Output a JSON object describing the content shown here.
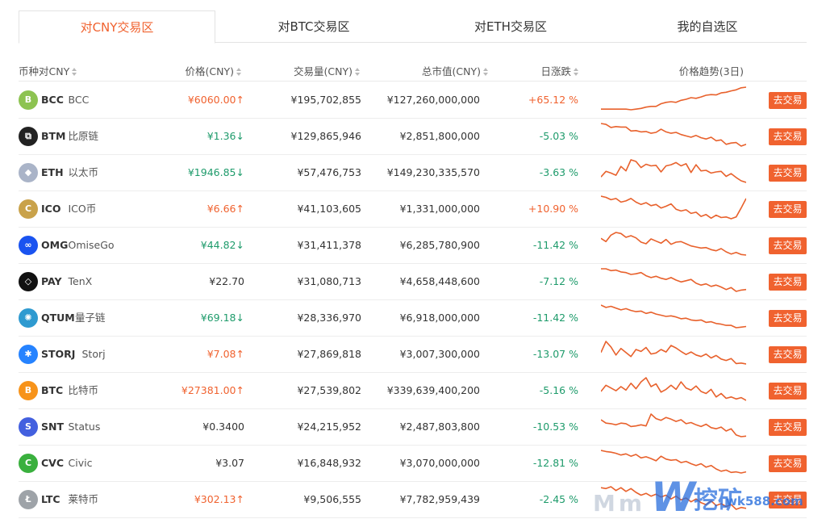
{
  "tabs": [
    "对CNY交易区",
    "对BTC交易区",
    "对ETH交易区",
    "我的自选区"
  ],
  "headers": {
    "coin": "币种对CNY",
    "price": "价格(CNY)",
    "volume": "交易量(CNY)",
    "market_cap": "总市值(CNY)",
    "change": "日涨跌",
    "trend": "价格趋势(3日)"
  },
  "trade_label": "去交易",
  "rows": [
    {
      "symbol": "BCC",
      "name": "BCC",
      "price": "¥6060.00",
      "arrow": "↑",
      "dir": "up",
      "volume": "¥195,702,855",
      "market_cap": "¥127,260,000,000",
      "change": "+65.12 %",
      "change_dir": "up",
      "icon_name": "bitcoin-cash-icon",
      "icon_color": "#8dc351",
      "icon_glyph": "B",
      "spark": [
        3,
        3,
        3,
        3,
        3,
        3,
        2.8,
        3,
        3.2,
        3.6,
        3.8,
        3.8,
        4.6,
        5,
        5.2,
        5,
        5.6,
        5.9,
        6.4,
        6.2,
        6.6,
        7.1,
        7.3,
        7.2,
        7.8,
        8,
        8.4,
        8.7,
        9.3,
        9.5
      ]
    },
    {
      "symbol": "BTM",
      "name": "比原链",
      "price": "¥1.36",
      "arrow": "↓",
      "dir": "down",
      "volume": "¥129,865,946",
      "market_cap": "¥2,851,800,000",
      "change": "-5.03 %",
      "change_dir": "down",
      "icon_name": "bytom-icon",
      "icon_color": "#222222",
      "icon_glyph": "⧉",
      "spark": [
        9.3,
        9.1,
        8.4,
        8.6,
        8.5,
        8.5,
        7.6,
        7.7,
        7.4,
        7.5,
        7.1,
        7.3,
        8,
        7.4,
        7.1,
        7.3,
        6.8,
        6.5,
        6.2,
        6.6,
        6.1,
        5.8,
        6.2,
        5.4,
        5.6,
        4.6,
        4.9,
        5,
        4.2,
        4.6
      ]
    },
    {
      "symbol": "ETH",
      "name": "以太币",
      "price": "¥1946.85",
      "arrow": "↓",
      "dir": "down",
      "volume": "¥57,476,753",
      "market_cap": "¥149,230,335,570",
      "change": "-3.63 %",
      "change_dir": "down",
      "icon_name": "ethereum-icon",
      "icon_color": "#aab4c8",
      "icon_glyph": "◆",
      "spark": [
        6.5,
        7.5,
        7.2,
        6.8,
        8.4,
        7.6,
        9.6,
        9.3,
        8.2,
        8.8,
        8.5,
        8.6,
        7.4,
        8.5,
        8.7,
        9.1,
        8.5,
        8.9,
        7.3,
        8.7,
        7.6,
        7.7,
        7.2,
        7.4,
        7.5,
        6.6,
        7.1,
        6.4,
        5.8,
        5.5
      ]
    },
    {
      "symbol": "ICO",
      "name": "ICO币",
      "price": "¥6.66",
      "arrow": "↑",
      "dir": "up",
      "volume": "¥41,103,605",
      "market_cap": "¥1,331,000,000",
      "change": "+10.90 %",
      "change_dir": "up",
      "icon_name": "ico-coin-icon",
      "icon_color": "#c9a24a",
      "icon_glyph": "C",
      "spark": [
        9,
        8.8,
        8.4,
        8.6,
        8,
        8.2,
        8.6,
        8,
        7.6,
        7.9,
        7.4,
        7.6,
        7,
        7.3,
        7.7,
        6.8,
        6.5,
        6.7,
        6.1,
        6.3,
        5.6,
        5.9,
        5.3,
        5.8,
        5.4,
        5.5,
        5.2,
        5.5,
        7,
        8.6
      ]
    },
    {
      "symbol": "OMG",
      "name": "OmiseGo",
      "price": "¥44.82",
      "arrow": "↓",
      "dir": "down",
      "volume": "¥31,411,378",
      "market_cap": "¥6,285,780,900",
      "change": "-11.42 %",
      "change_dir": "down",
      "icon_name": "omisego-icon",
      "icon_color": "#1a53f0",
      "icon_glyph": "∞",
      "spark": [
        8.2,
        7.6,
        8.8,
        9.3,
        9.1,
        8.4,
        8.7,
        8.3,
        7.5,
        7.2,
        8.1,
        7.7,
        7.3,
        8,
        7.1,
        7.5,
        7.6,
        7.2,
        6.8,
        6.6,
        6.4,
        6.5,
        6.1,
        5.9,
        6.3,
        5.7,
        5.3,
        5.6,
        5.2,
        5.1
      ]
    },
    {
      "symbol": "PAY",
      "name": "TenX",
      "price": "¥22.70",
      "arrow": "",
      "dir": "flat",
      "volume": "¥31,080,713",
      "market_cap": "¥4,658,448,600",
      "change": "-7.12 %",
      "change_dir": "down",
      "icon_name": "tenx-icon",
      "icon_color": "#111111",
      "icon_glyph": "◇",
      "spark": [
        9,
        9,
        8.7,
        8.8,
        8.5,
        8.4,
        8.1,
        8.2,
        8.4,
        7.9,
        7.6,
        7.8,
        7.5,
        7.3,
        7.6,
        7.2,
        6.9,
        7.1,
        7.3,
        6.7,
        6.4,
        6.6,
        6.2,
        6.4,
        6.1,
        5.7,
        6,
        5.4,
        5.6,
        5.7
      ]
    },
    {
      "symbol": "QTUM",
      "name": "量子链",
      "price": "¥69.18",
      "arrow": "↓",
      "dir": "down",
      "volume": "¥28,336,970",
      "market_cap": "¥6,918,000,000",
      "change": "-11.42 %",
      "change_dir": "down",
      "icon_name": "qtum-icon",
      "icon_color": "#2e9ad0",
      "icon_glyph": "✺",
      "spark": [
        9,
        8.6,
        8.8,
        8.5,
        8.2,
        8.4,
        8.1,
        7.9,
        8,
        7.6,
        7.8,
        7.5,
        7.3,
        7.1,
        7.2,
        7,
        6.7,
        6.8,
        6.5,
        6.4,
        6.5,
        6.1,
        6.2,
        5.9,
        5.8,
        5.6,
        5.6,
        5.2,
        5.3,
        5.4
      ]
    },
    {
      "symbol": "STORJ",
      "name": "Storj",
      "price": "¥7.08",
      "arrow": "↑",
      "dir": "up",
      "volume": "¥27,869,818",
      "market_cap": "¥3,007,300,000",
      "change": "-13.07 %",
      "change_dir": "down",
      "icon_name": "storj-icon",
      "icon_color": "#2683ff",
      "icon_glyph": "✱",
      "spark": [
        7.6,
        9.8,
        8.7,
        7.1,
        8.4,
        7.6,
        6.8,
        8.2,
        7.8,
        8.6,
        7.3,
        7.5,
        8.2,
        7.7,
        9,
        8.5,
        7.8,
        7.2,
        7.7,
        7.1,
        6.8,
        7.3,
        6.5,
        7,
        6.3,
        6,
        6.4,
        5.4,
        5.5,
        5.3
      ]
    },
    {
      "symbol": "BTC",
      "name": "比特币",
      "price": "¥27381.00",
      "arrow": "↑",
      "dir": "up",
      "volume": "¥27,539,802",
      "market_cap": "¥339,639,400,200",
      "change": "-5.16 %",
      "change_dir": "down",
      "icon_name": "bitcoin-icon",
      "icon_color": "#f7931a",
      "icon_glyph": "B",
      "spark": [
        7.2,
        8.1,
        7.7,
        7.3,
        7.9,
        7.4,
        8.4,
        7.6,
        8.6,
        9.2,
        7.9,
        8.3,
        7.1,
        7.5,
        8.1,
        7.5,
        8.6,
        7.7,
        7.4,
        8,
        7.2,
        6.9,
        7.5,
        6.4,
        6.9,
        6.2,
        6.4,
        6.1,
        6.3,
        5.9
      ]
    },
    {
      "symbol": "SNT",
      "name": "Status",
      "price": "¥0.3400",
      "arrow": "",
      "dir": "flat",
      "volume": "¥24,215,952",
      "market_cap": "¥2,487,803,800",
      "change": "-10.53 %",
      "change_dir": "down",
      "icon_name": "status-icon",
      "icon_color": "#4360df",
      "icon_glyph": "S",
      "spark": [
        8.4,
        7.8,
        7.7,
        7.5,
        7.8,
        7.7,
        7.2,
        7.3,
        7.5,
        7.3,
        9.4,
        8.6,
        8.3,
        8.8,
        8.5,
        8.1,
        8.4,
        7.7,
        7.9,
        7.5,
        7.2,
        7.6,
        7,
        6.8,
        7.1,
        6.4,
        6.8,
        5.7,
        5.4,
        5.5
      ]
    },
    {
      "symbol": "CVC",
      "name": "Civic",
      "price": "¥3.07",
      "arrow": "",
      "dir": "flat",
      "volume": "¥16,848,932",
      "market_cap": "¥3,070,000,000",
      "change": "-12.81 %",
      "change_dir": "down",
      "icon_name": "civic-icon",
      "icon_color": "#3ab03e",
      "icon_glyph": "C",
      "spark": [
        9.2,
        9,
        8.9,
        8.7,
        8.4,
        8.6,
        8.2,
        8.5,
        7.9,
        8.1,
        7.8,
        7.4,
        8.2,
        7.7,
        7.5,
        7.6,
        7.1,
        7.3,
        6.9,
        6.6,
        6.9,
        6.3,
        6.6,
        6,
        5.6,
        5.8,
        5.4,
        5.5,
        5.3,
        5.5
      ]
    },
    {
      "symbol": "LTC",
      "name": "莱特币",
      "price": "¥302.13",
      "arrow": "↑",
      "dir": "up",
      "volume": "¥9,506,555",
      "market_cap": "¥7,782,959,439",
      "change": "-2.45 %",
      "change_dir": "down",
      "icon_name": "litecoin-icon",
      "icon_color": "#9ea3a8",
      "icon_glyph": "Ł",
      "spark": [
        8.6,
        8.5,
        8.7,
        8.3,
        8.6,
        8.2,
        8.5,
        8.1,
        7.8,
        8,
        7.7,
        7.9,
        7.6,
        7.8,
        7.4,
        7.7,
        7.3,
        7.5,
        7.1,
        7.4,
        7,
        6.8,
        7.2,
        6.7,
        6.9,
        6.6,
        6.8,
        6.3,
        6.5,
        6.4
      ]
    }
  ],
  "watermark": {
    "prefix": "Mm",
    "brand": "W",
    "cn": "挖矿",
    "site": "wk588.com"
  },
  "colors": {
    "accent": "#f0622f",
    "down": "#1e9b6b",
    "spark": "#e8612c"
  }
}
